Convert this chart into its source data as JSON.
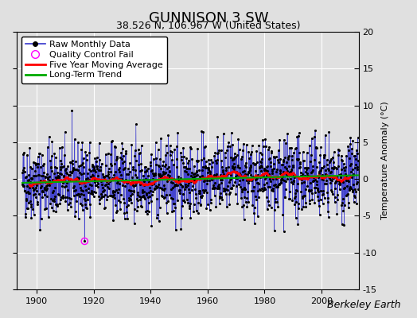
{
  "title": "GUNNISON 3 SW",
  "subtitle": "38.526 N, 106.967 W (United States)",
  "ylabel": "Temperature Anomaly (°C)",
  "xlim": [
    1893,
    2013
  ],
  "ylim": [
    -15,
    20
  ],
  "yticks": [
    -15,
    -10,
    -5,
    0,
    5,
    10,
    15,
    20
  ],
  "xticks": [
    1900,
    1920,
    1940,
    1960,
    1980,
    2000
  ],
  "background_color": "#e0e0e0",
  "plot_background": "#e0e0e0",
  "grid_color": "white",
  "raw_line_color": "#3333cc",
  "raw_marker_color": "black",
  "moving_avg_color": "red",
  "trend_color": "#00aa00",
  "qc_fail_color": "magenta",
  "watermark": "Berkeley Earth",
  "title_fontsize": 13,
  "subtitle_fontsize": 9,
  "legend_fontsize": 8,
  "watermark_fontsize": 9,
  "start_year": 1895,
  "end_year": 2013
}
